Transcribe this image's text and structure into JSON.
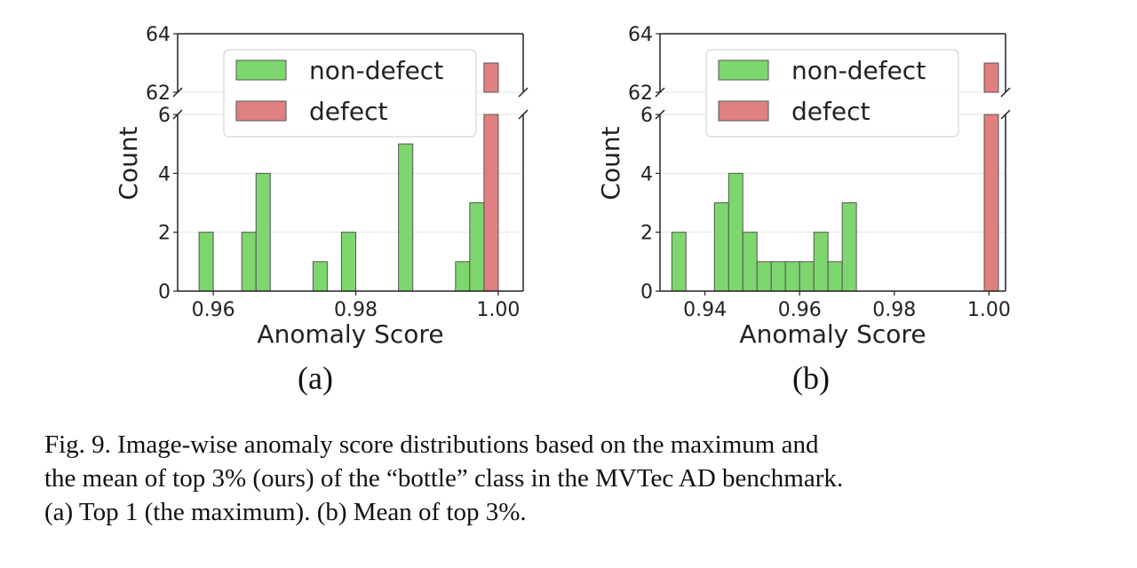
{
  "colors": {
    "non_defect": "#7ed66e",
    "defect": "#e08080",
    "edge": "#555555"
  },
  "chart_data": [
    {
      "type": "bar",
      "panel_label": "(a)",
      "xlabel": "Anomaly Score",
      "ylabel": "Count",
      "xlim": [
        0.955,
        1.0035
      ],
      "xticks": [
        0.96,
        0.98,
        1.0
      ],
      "xtick_labels": [
        "0.96",
        "0.98",
        "1.00"
      ],
      "ylim_lower": [
        0,
        6
      ],
      "ylim_upper": [
        62,
        64
      ],
      "yticks_lower": [
        0,
        2,
        4,
        6
      ],
      "yticks_upper": [
        62,
        64
      ],
      "broken_axis": true,
      "bin_width": 0.002,
      "legend": {
        "location": "top-right",
        "entries": [
          "non-defect",
          "defect"
        ]
      },
      "series": [
        {
          "name": "non-defect",
          "x": [
            0.958,
            0.964,
            0.966,
            0.974,
            0.978,
            0.986,
            0.994,
            0.996
          ],
          "values": [
            2,
            2,
            4,
            1,
            2,
            5,
            1,
            3
          ]
        },
        {
          "name": "defect",
          "x": [
            0.998
          ],
          "values": [
            63
          ]
        }
      ]
    },
    {
      "type": "bar",
      "panel_label": "(b)",
      "xlabel": "Anomaly Score",
      "ylabel": "Count",
      "xlim": [
        0.9305,
        1.0035
      ],
      "xticks": [
        0.94,
        0.96,
        0.98,
        1.0
      ],
      "xtick_labels": [
        "0.94",
        "0.96",
        "0.98",
        "1.00"
      ],
      "ylim_lower": [
        0,
        6
      ],
      "ylim_upper": [
        62,
        64
      ],
      "yticks_lower": [
        0,
        2,
        4,
        6
      ],
      "yticks_upper": [
        62,
        64
      ],
      "broken_axis": true,
      "bin_width": 0.003,
      "legend": {
        "location": "top-right",
        "entries": [
          "non-defect",
          "defect"
        ]
      },
      "series": [
        {
          "name": "non-defect",
          "x": [
            0.933,
            0.942,
            0.945,
            0.948,
            0.951,
            0.954,
            0.957,
            0.96,
            0.963,
            0.966,
            0.969,
            0.972
          ],
          "values": [
            2,
            3,
            4,
            2,
            1,
            1,
            1,
            1,
            2,
            1,
            3,
            0
          ]
        },
        {
          "name": "defect",
          "x": [
            0.999
          ],
          "values": [
            63
          ]
        }
      ]
    }
  ],
  "caption": {
    "lines": [
      "Fig. 9.    Image-wise anomaly score distributions based on the maximum and",
      "the mean of top 3% (ours) of the “bottle” class in the MVTec AD benchmark.",
      "(a) Top 1 (the maximum). (b) Mean of top 3%."
    ]
  }
}
